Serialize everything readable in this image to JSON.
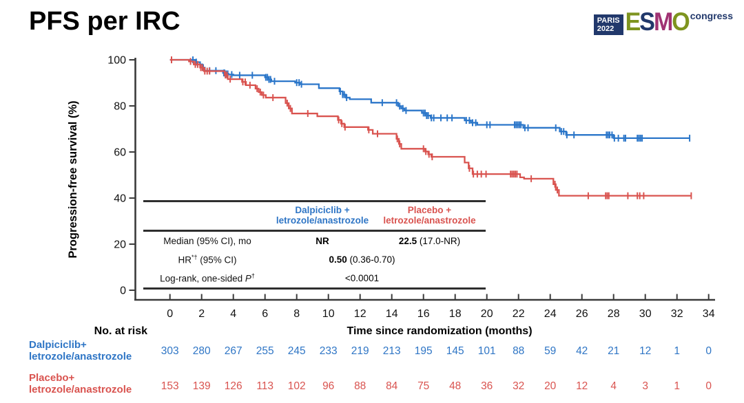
{
  "title": "PFS per IRC",
  "logo": {
    "city": "PARIS",
    "year": "2022",
    "badge_bg": "#21386B",
    "letters": [
      {
        "ch": "E",
        "color": "#7E941F"
      },
      {
        "ch": "S",
        "color": "#21386B"
      },
      {
        "ch": "M",
        "color": "#A03273"
      },
      {
        "ch": "O",
        "color": "#7E941F"
      }
    ],
    "congress": "congress",
    "congress_color": "#21386B"
  },
  "chart_data": {
    "type": "line",
    "subtype": "kaplan-meier-step",
    "title": "",
    "xlabel": "Time since randomization (months)",
    "ylabel": "Progression-free survival (%)",
    "xlim": [
      0,
      34
    ],
    "ylim": [
      0,
      100
    ],
    "xticks": [
      0,
      2,
      4,
      6,
      8,
      10,
      12,
      14,
      16,
      18,
      20,
      22,
      24,
      26,
      28,
      30,
      32,
      34
    ],
    "yticks": [
      0,
      20,
      40,
      60,
      80,
      100
    ],
    "grid": false,
    "axis_color": "#3a3a3a",
    "series": [
      {
        "name": "Dalpiciclib + letrozole/anastrozole",
        "color": "#2B76C9",
        "end": 32.8,
        "steps": [
          [
            0,
            100
          ],
          [
            1.6,
            99.0
          ],
          [
            1.9,
            98.0
          ],
          [
            2.05,
            96.6
          ],
          [
            2.2,
            95.3
          ],
          [
            3.35,
            94.3
          ],
          [
            3.5,
            93.9
          ],
          [
            3.7,
            93.6
          ],
          [
            4.0,
            93.3
          ],
          [
            6.0,
            92.4
          ],
          [
            6.2,
            91.5
          ],
          [
            6.4,
            90.7
          ],
          [
            7.9,
            90.1
          ],
          [
            8.2,
            89.4
          ],
          [
            9.4,
            87.7
          ],
          [
            10.7,
            86.3
          ],
          [
            10.9,
            84.9
          ],
          [
            11.1,
            83.6
          ],
          [
            11.35,
            82.9
          ],
          [
            12.7,
            81.4
          ],
          [
            14.4,
            79.9
          ],
          [
            14.6,
            78.9
          ],
          [
            14.8,
            78.0
          ],
          [
            15.9,
            76.9
          ],
          [
            16.2,
            75.8
          ],
          [
            16.45,
            74.8
          ],
          [
            18.6,
            73.7
          ],
          [
            19.0,
            72.7
          ],
          [
            19.4,
            71.8
          ],
          [
            22.3,
            70.5
          ],
          [
            24.6,
            68.9
          ],
          [
            25.0,
            67.4
          ],
          [
            28.0,
            66.0
          ]
        ],
        "censors": [
          1.45,
          1.66,
          2.1,
          2.5,
          2.9,
          3.4,
          3.45,
          3.55,
          3.65,
          3.9,
          4.4,
          5.2,
          6.05,
          6.15,
          6.25,
          6.35,
          6.6,
          8.0,
          8.15,
          8.3,
          10.75,
          10.9,
          11.0,
          11.15,
          13.4,
          14.3,
          14.5,
          14.7,
          14.9,
          16.0,
          16.1,
          16.2,
          16.3,
          16.5,
          16.65,
          17.1,
          17.5,
          17.8,
          18.7,
          18.9,
          19.1,
          19.3,
          20.0,
          20.2,
          21.75,
          21.85,
          21.95,
          22.05,
          22.15,
          22.4,
          22.6,
          24.35,
          24.7,
          24.85,
          25.05,
          25.5,
          27.55,
          27.65,
          27.75,
          27.9,
          28.05,
          28.3,
          28.65,
          28.75,
          29.5,
          29.6,
          29.7,
          29.8,
          32.8
        ]
      },
      {
        "name": "Placebo + letrozole/anastrozole",
        "color": "#D9534F",
        "end": 32.9,
        "steps": [
          [
            0,
            100
          ],
          [
            1.2,
            99.3
          ],
          [
            1.5,
            98.0
          ],
          [
            1.9,
            96.6
          ],
          [
            2.15,
            95.1
          ],
          [
            3.45,
            93.4
          ],
          [
            3.65,
            91.6
          ],
          [
            4.55,
            90.4
          ],
          [
            4.8,
            89.0
          ],
          [
            5.4,
            87.5
          ],
          [
            5.6,
            86.0
          ],
          [
            5.8,
            84.7
          ],
          [
            6.05,
            83.6
          ],
          [
            7.3,
            81.2
          ],
          [
            7.5,
            78.9
          ],
          [
            7.7,
            76.7
          ],
          [
            9.3,
            75.5
          ],
          [
            10.6,
            73.9
          ],
          [
            10.8,
            72.3
          ],
          [
            11.0,
            70.8
          ],
          [
            12.5,
            69.6
          ],
          [
            12.8,
            67.9
          ],
          [
            14.3,
            65.7
          ],
          [
            14.45,
            63.5
          ],
          [
            14.6,
            61.4
          ],
          [
            16.1,
            60.2
          ],
          [
            16.3,
            59.0
          ],
          [
            16.5,
            57.9
          ],
          [
            18.6,
            55.4
          ],
          [
            18.85,
            52.9
          ],
          [
            19.1,
            50.4
          ],
          [
            22.1,
            49.0
          ],
          [
            22.35,
            48.4
          ],
          [
            24.2,
            46.0
          ],
          [
            24.35,
            43.5
          ],
          [
            24.55,
            41.0
          ]
        ],
        "censors": [
          0.1,
          1.3,
          1.6,
          1.75,
          1.95,
          2.05,
          2.2,
          2.35,
          2.5,
          3.5,
          3.6,
          3.8,
          4.6,
          4.75,
          5.05,
          5.5,
          5.7,
          5.9,
          6.5,
          7.4,
          7.6,
          8.7,
          10.65,
          10.85,
          11.05,
          12.55,
          13.1,
          14.35,
          14.5,
          16.0,
          16.15,
          16.35,
          16.55,
          18.9,
          19.15,
          19.4,
          19.65,
          19.95,
          21.5,
          21.6,
          21.7,
          21.8,
          21.9,
          22.8,
          24.3,
          24.45,
          26.4,
          27.5,
          27.6,
          27.7,
          28.9,
          29.5,
          29.65,
          29.9,
          32.9
        ]
      }
    ]
  },
  "inset_table": {
    "headers": [
      {
        "lines": [
          "Dalpiciclib +",
          "letrozole/anastrozole"
        ],
        "color": "#2E75C5"
      },
      {
        "lines": [
          "Placebo +",
          "letrozole/anastrozole"
        ],
        "color": "#D9534F"
      }
    ],
    "rows": [
      {
        "label": [
          {
            "t": "Median (95% CI), mo"
          }
        ],
        "cells": [
          {
            "col": "a",
            "segs": [
              {
                "t": "NR",
                "b": true
              }
            ]
          },
          {
            "col": "b",
            "segs": [
              {
                "t": "22.5",
                "b": true
              },
              {
                "t": " (17.0-NR)"
              }
            ]
          }
        ]
      },
      {
        "label": [
          {
            "t": "HR"
          },
          {
            "t": "*†",
            "sup": true
          },
          {
            "t": " (95% CI)"
          }
        ],
        "cells": [
          {
            "col": "span",
            "segs": [
              {
                "t": "0.50",
                "b": true
              },
              {
                "t": " (0.36-0.70)"
              }
            ]
          }
        ]
      },
      {
        "label": [
          {
            "t": "Log-rank, one-sided "
          },
          {
            "t": "P",
            "i": true
          },
          {
            "t": "†",
            "sup": true
          }
        ],
        "cells": [
          {
            "col": "span",
            "segs": [
              {
                "t": "<0.0001"
              }
            ]
          }
        ]
      }
    ]
  },
  "risk_table": {
    "label": "No. at risk",
    "rows": [
      {
        "name_lines": [
          "Dalpiciclib+",
          "letrozole/anastrozole"
        ],
        "color": "#2E75C5",
        "counts": [
          303,
          280,
          267,
          255,
          245,
          233,
          219,
          213,
          195,
          145,
          101,
          88,
          59,
          42,
          21,
          12,
          1,
          0
        ]
      },
      {
        "name_lines": [
          "Placebo+",
          "letrozole/anastrozole"
        ],
        "color": "#D9534F",
        "counts": [
          153,
          139,
          126,
          113,
          102,
          96,
          88,
          84,
          75,
          48,
          36,
          32,
          20,
          12,
          4,
          3,
          1,
          0
        ]
      }
    ]
  }
}
